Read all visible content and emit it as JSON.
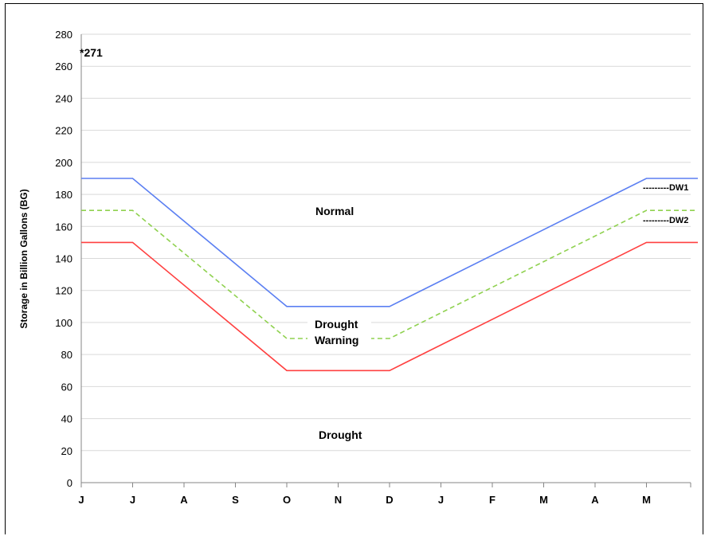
{
  "chart_data": {
    "type": "line",
    "title": "",
    "ylabel": "Storage in Billion Gallons (BG)",
    "xlabel": "",
    "ylim": [
      0,
      280
    ],
    "ytick_step": 20,
    "grid": true,
    "x_ticks": [
      "J",
      "J",
      "A",
      "S",
      "O",
      "N",
      "D",
      "J",
      "F",
      "M",
      "A",
      "M"
    ],
    "series": [
      {
        "name": "DW1",
        "color": "#5b7ff2",
        "dashed": false,
        "x": [
          0,
          1,
          4,
          6,
          11,
          12
        ],
        "y": [
          190,
          190,
          110,
          110,
          190,
          190
        ]
      },
      {
        "name": "DW2",
        "color": "#8fd14f",
        "dashed": true,
        "x": [
          0,
          1,
          4,
          6,
          11,
          12
        ],
        "y": [
          170,
          170,
          90,
          90,
          170,
          170
        ]
      },
      {
        "name": "",
        "color": "#ff4040",
        "dashed": false,
        "x": [
          0,
          1,
          4,
          6,
          11,
          12
        ],
        "y": [
          150,
          150,
          70,
          70,
          150,
          150
        ]
      }
    ],
    "annotations": {
      "max": "*271",
      "normal": "Normal",
      "drought_warning_1": "Drought",
      "drought_warning_2": "Warning",
      "drought": "Drought",
      "dw1": "---------DW1",
      "dw2": "---------DW2"
    }
  }
}
